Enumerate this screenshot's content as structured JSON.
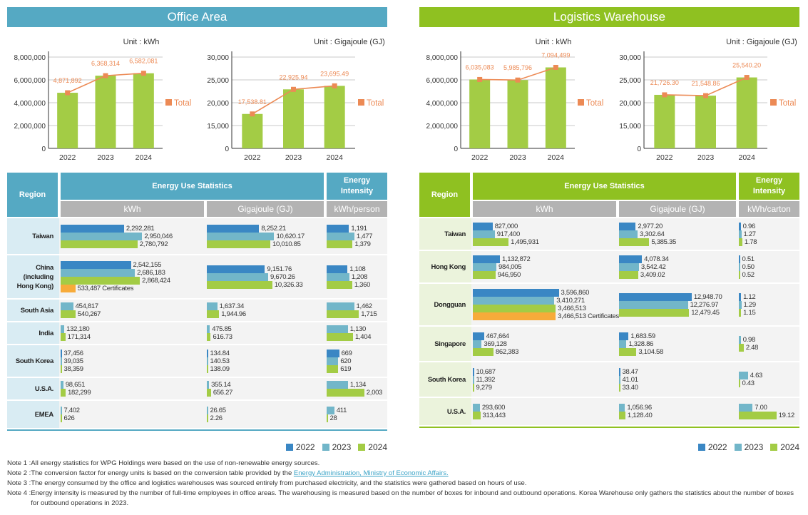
{
  "colors": {
    "office": "#55a9c3",
    "office_light": "#d9ecf3",
    "logistics": "#8fc121",
    "logistics_light": "#ebf3dc",
    "y2022": "#3a87c4",
    "y2023": "#72b6c9",
    "y2024": "#a3cc45",
    "certificates": "#f7ab3a",
    "total_line": "#ec8a55",
    "bar_green": "#a3cc45",
    "subheader_gray": "#b3b3b3"
  },
  "office": {
    "title": "Office Area",
    "table": {
      "region_header": "Region",
      "stats_header": "Energy Use Statistics",
      "intensity_header": "Energy Intensity",
      "kwh_header": "kWh",
      "gj_header": "Gigajoule (GJ)",
      "intensity_unit": "kWh/person",
      "rows": [
        {
          "region": "Taiwan",
          "kwh": [
            {
              "year": "2022",
              "value": 2292281,
              "label": "2,292,281"
            },
            {
              "year": "2023",
              "value": 2950046,
              "label": "2,950,046"
            },
            {
              "year": "2024",
              "value": 2780792,
              "label": "2,780,792"
            }
          ],
          "gj": [
            {
              "year": "2022",
              "value": 8252.21,
              "label": "8,252.21"
            },
            {
              "year": "2023",
              "value": 10620.17,
              "label": "10,620.17"
            },
            {
              "year": "2024",
              "value": 10010.85,
              "label": "10,010.85"
            }
          ],
          "intensity": [
            {
              "year": "2022",
              "value": 1191,
              "label": "1,191"
            },
            {
              "year": "2023",
              "value": 1477,
              "label": "1,477"
            },
            {
              "year": "2024",
              "value": 1379,
              "label": "1,379"
            }
          ]
        },
        {
          "region": "China (including Hong Kong)",
          "kwh": [
            {
              "year": "2022",
              "value": 2542155,
              "label": "2,542,155"
            },
            {
              "year": "2023",
              "value": 2686183,
              "label": "2,686,183"
            },
            {
              "year": "2024",
              "value": 2868424,
              "label": "2,868,424"
            },
            {
              "year": "cert",
              "value": 533487,
              "label": "533,487 Certificates"
            }
          ],
          "gj": [
            {
              "year": "2022",
              "value": 9151.76,
              "label": "9,151.76"
            },
            {
              "year": "2023",
              "value": 9670.26,
              "label": "9,670.26"
            },
            {
              "year": "2024",
              "value": 10326.33,
              "label": "10,326.33"
            }
          ],
          "intensity": [
            {
              "year": "2022",
              "value": 1108,
              "label": "1,108"
            },
            {
              "year": "2023",
              "value": 1208,
              "label": "1,208"
            },
            {
              "year": "2024",
              "value": 1360,
              "label": "1,360"
            }
          ]
        },
        {
          "region": "South Asia",
          "kwh": [
            {
              "year": "2023",
              "value": 454817,
              "label": "454,817"
            },
            {
              "year": "2024",
              "value": 540267,
              "label": "540,267"
            }
          ],
          "gj": [
            {
              "year": "2023",
              "value": 1637.34,
              "label": "1,637.34"
            },
            {
              "year": "2024",
              "value": 1944.96,
              "label": "1,944.96"
            }
          ],
          "intensity": [
            {
              "year": "2023",
              "value": 1462,
              "label": "1,462"
            },
            {
              "year": "2024",
              "value": 1715,
              "label": "1,715"
            }
          ]
        },
        {
          "region": "India",
          "kwh": [
            {
              "year": "2023",
              "value": 132180,
              "label": "132,180"
            },
            {
              "year": "2024",
              "value": 171314,
              "label": "171,314"
            }
          ],
          "gj": [
            {
              "year": "2023",
              "value": 475.85,
              "label": "475.85"
            },
            {
              "year": "2024",
              "value": 616.73,
              "label": "616.73"
            }
          ],
          "intensity": [
            {
              "year": "2023",
              "value": 1130,
              "label": "1,130"
            },
            {
              "year": "2024",
              "value": 1404,
              "label": "1,404"
            }
          ]
        },
        {
          "region": "South Korea",
          "kwh": [
            {
              "year": "2022",
              "value": 37456,
              "label": "37,456"
            },
            {
              "year": "2023",
              "value": 39035,
              "label": "39,035"
            },
            {
              "year": "2024",
              "value": 38359,
              "label": "38,359"
            }
          ],
          "gj": [
            {
              "year": "2022",
              "value": 134.84,
              "label": "134.84"
            },
            {
              "year": "2023",
              "value": 140.53,
              "label": "140.53"
            },
            {
              "year": "2024",
              "value": 138.09,
              "label": "138.09"
            }
          ],
          "intensity": [
            {
              "year": "2022",
              "value": 669,
              "label": "669"
            },
            {
              "year": "2023",
              "value": 620,
              "label": "620"
            },
            {
              "year": "2024",
              "value": 619,
              "label": "619"
            }
          ]
        },
        {
          "region": "U.S.A.",
          "kwh": [
            {
              "year": "2023",
              "value": 98651,
              "label": "98,651"
            },
            {
              "year": "2024",
              "value": 182299,
              "label": "182,299"
            }
          ],
          "gj": [
            {
              "year": "2023",
              "value": 355.14,
              "label": "355.14"
            },
            {
              "year": "2024",
              "value": 656.27,
              "label": "656.27"
            }
          ],
          "intensity": [
            {
              "year": "2023",
              "value": 1134,
              "label": "1,134"
            },
            {
              "year": "2024",
              "value": 2003,
              "label": "2,003"
            }
          ]
        },
        {
          "region": "EMEA",
          "kwh": [
            {
              "year": "2023",
              "value": 7402,
              "label": "7,402"
            },
            {
              "year": "2024",
              "value": 626,
              "label": "626"
            }
          ],
          "gj": [
            {
              "year": "2023",
              "value": 26.65,
              "label": "26.65"
            },
            {
              "year": "2024",
              "value": 2.26,
              "label": "2.26"
            }
          ],
          "intensity": [
            {
              "year": "2023",
              "value": 411,
              "label": "411"
            },
            {
              "year": "2024",
              "value": 28,
              "label": "28"
            }
          ]
        }
      ]
    }
  },
  "logistics": {
    "title": "Logistics Warehouse",
    "table": {
      "region_header": "Region",
      "stats_header": "Energy Use Statistics",
      "intensity_header": "Energy Intensity",
      "kwh_header": "kWh",
      "gj_header": "Gigajoule (GJ)",
      "intensity_unit": "kWh/carton",
      "rows": [
        {
          "region": "Taiwan",
          "kwh": [
            {
              "year": "2022",
              "value": 827000,
              "label": "827,000"
            },
            {
              "year": "2023",
              "value": 917400,
              "label": "917,400"
            },
            {
              "year": "2024",
              "value": 1495931,
              "label": "1,495,931"
            }
          ],
          "gj": [
            {
              "year": "2022",
              "value": 2977.2,
              "label": "2,977.20"
            },
            {
              "year": "2023",
              "value": 3302.64,
              "label": "3,302.64"
            },
            {
              "year": "2024",
              "value": 5385.35,
              "label": "5,385.35"
            }
          ],
          "intensity": [
            {
              "year": "2022",
              "value": 0.96,
              "label": "0.96"
            },
            {
              "year": "2023",
              "value": 1.27,
              "label": "1.27"
            },
            {
              "year": "2024",
              "value": 1.78,
              "label": "1.78"
            }
          ]
        },
        {
          "region": "Hong Kong",
          "kwh": [
            {
              "year": "2022",
              "value": 1132872,
              "label": "1,132,872"
            },
            {
              "year": "2023",
              "value": 984005,
              "label": "984,005"
            },
            {
              "year": "2024",
              "value": 946950,
              "label": "946,950"
            }
          ],
          "gj": [
            {
              "year": "2022",
              "value": 4078.34,
              "label": "4,078.34"
            },
            {
              "year": "2023",
              "value": 3542.42,
              "label": "3,542.42"
            },
            {
              "year": "2024",
              "value": 3409.02,
              "label": "3,409.02"
            }
          ],
          "intensity": [
            {
              "year": "2022",
              "value": 0.51,
              "label": "0.51"
            },
            {
              "year": "2023",
              "value": 0.5,
              "label": "0.50"
            },
            {
              "year": "2024",
              "value": 0.52,
              "label": "0.52"
            }
          ]
        },
        {
          "region": "Dongguan",
          "kwh": [
            {
              "year": "2022",
              "value": 3596860,
              "label": "3,596,860"
            },
            {
              "year": "2023",
              "value": 3410271,
              "label": "3,410,271"
            },
            {
              "year": "2024",
              "value": 3466513,
              "label": "3,466,513"
            },
            {
              "year": "cert",
              "value": 3466513,
              "label": "3,466,513 Certificates"
            }
          ],
          "gj": [
            {
              "year": "2022",
              "value": 12948.7,
              "label": "12,948.70"
            },
            {
              "year": "2023",
              "value": 12276.97,
              "label": "12,276.97"
            },
            {
              "year": "2024",
              "value": 12479.45,
              "label": "12,479.45"
            }
          ],
          "intensity": [
            {
              "year": "2022",
              "value": 1.12,
              "label": "1.12"
            },
            {
              "year": "2023",
              "value": 1.29,
              "label": "1.29"
            },
            {
              "year": "2024",
              "value": 1.15,
              "label": "1.15"
            }
          ]
        },
        {
          "region": "Singapore",
          "kwh": [
            {
              "year": "2022",
              "value": 467664,
              "label": "467,664"
            },
            {
              "year": "2023",
              "value": 369128,
              "label": "369,128"
            },
            {
              "year": "2024",
              "value": 862383,
              "label": "862,383"
            }
          ],
          "gj": [
            {
              "year": "2022",
              "value": 1683.59,
              "label": "1,683.59"
            },
            {
              "year": "2023",
              "value": 1328.86,
              "label": "1,328.86"
            },
            {
              "year": "2024",
              "value": 3104.58,
              "label": "3,104.58"
            }
          ],
          "intensity": [
            {
              "year": "2023",
              "value": 0.98,
              "label": "0.98"
            },
            {
              "year": "2024",
              "value": 2.48,
              "label": "2.48"
            }
          ]
        },
        {
          "region": "South Korea",
          "kwh": [
            {
              "year": "2022",
              "value": 10687,
              "label": "10,687"
            },
            {
              "year": "2023",
              "value": 11392,
              "label": "11,392"
            },
            {
              "year": "2024",
              "value": 9279,
              "label": "9,279"
            }
          ],
          "gj": [
            {
              "year": "2022",
              "value": 38.47,
              "label": "38.47"
            },
            {
              "year": "2023",
              "value": 41.01,
              "label": "41.01"
            },
            {
              "year": "2024",
              "value": 33.4,
              "label": "33.40"
            }
          ],
          "intensity": [
            {
              "year": "2023",
              "value": 4.63,
              "label": "4.63"
            },
            {
              "year": "2024",
              "value": 0.43,
              "label": "0.43"
            }
          ]
        },
        {
          "region": "U.S.A.",
          "kwh": [
            {
              "year": "2023",
              "value": 293600,
              "label": "293,600"
            },
            {
              "year": "2024",
              "value": 313443,
              "label": "313,443"
            }
          ],
          "gj": [
            {
              "year": "2023",
              "value": 1056.96,
              "label": "1,056.96"
            },
            {
              "year": "2024",
              "value": 1128.4,
              "label": "1,128.40"
            }
          ],
          "intensity": [
            {
              "year": "2023",
              "value": 7.0,
              "label": "7.00"
            },
            {
              "year": "2024",
              "value": 19.12,
              "label": "19.12"
            }
          ]
        }
      ]
    }
  },
  "legend": [
    "2022",
    "2023",
    "2024"
  ],
  "notes": [
    {
      "label": "Note 1 : ",
      "text": "All energy statistics for WPG Holdings were based on the use of non-renewable energy sources."
    },
    {
      "label": "Note 2 : ",
      "text": "The conversion factor for energy units is based on the conversion table provided by the ",
      "link": "Energy Administration, Ministry of Economic Affairs."
    },
    {
      "label": "Note 3 : ",
      "text": "The energy consumed by the office and logistics warehouses was sourced entirely from purchased electricity, and the statistics were gathered based on hours of use."
    },
    {
      "label": "Note 4 : ",
      "text": "Energy intensity is measured by the number of full-time employees in office areas. The warehousing is measured based on the number of boxes for inbound and outbound operations. Korea Warehouse only gathers the statistics about the number of boxes for outbound operations in 2023."
    }
  ],
  "chart_data": [
    {
      "type": "bar",
      "panel": "office",
      "title": "",
      "unit_label": "Unit : kWh",
      "categories": [
        "2022",
        "2023",
        "2024"
      ],
      "values": [
        4871892,
        6368314,
        6582081
      ],
      "value_labels": [
        "4,871,892",
        "6,368,314",
        "6,582,081"
      ],
      "line_series": {
        "name": "Total",
        "values": [
          4871892,
          6368314,
          6582081
        ]
      },
      "yticks": [
        0,
        2000000,
        4000000,
        6000000,
        8000000
      ],
      "ytick_labels": [
        "0",
        "2,000,000",
        "4,000,000",
        "6,000,000",
        "8,000,000"
      ],
      "ylim": [
        0,
        8000000
      ],
      "grid": true,
      "legend": "right",
      "legend_label": "Total"
    },
    {
      "type": "bar",
      "panel": "office",
      "title": "",
      "unit_label": "Unit : Gigajoule (GJ)",
      "categories": [
        "2022",
        "2023",
        "2024"
      ],
      "values": [
        17538.81,
        22925.94,
        23695.49
      ],
      "value_labels": [
        "17,538.81",
        "22,925.94",
        "23,695.49"
      ],
      "line_series": {
        "name": "Total",
        "values": [
          17538.81,
          22925.94,
          23695.49
        ]
      },
      "yticks": [
        0,
        15000,
        20000,
        25000,
        30000
      ],
      "ytick_labels": [
        "0",
        "15,000",
        "20,000",
        "25,000",
        "30,000"
      ],
      "ylim": [
        10000,
        30000
      ],
      "broken_axis": true,
      "grid": true,
      "legend": "right",
      "legend_label": "Total"
    },
    {
      "type": "bar",
      "panel": "logistics",
      "title": "",
      "unit_label": "Unit : kWh",
      "categories": [
        "2022",
        "2023",
        "2024"
      ],
      "values": [
        6035083,
        5985796,
        7094499
      ],
      "value_labels": [
        "6,035,083",
        "5,985,796",
        "7,094,499"
      ],
      "line_series": {
        "name": "Total",
        "values": [
          6035083,
          5985796,
          7094499
        ]
      },
      "yticks": [
        0,
        2000000,
        4000000,
        6000000,
        8000000
      ],
      "ytick_labels": [
        "0",
        "2,000,000",
        "4,000,000",
        "6,000,000",
        "8,000,000"
      ],
      "ylim": [
        0,
        8000000
      ],
      "grid": true,
      "legend": "right",
      "legend_label": "Total"
    },
    {
      "type": "bar",
      "panel": "logistics",
      "title": "",
      "unit_label": "Unit : Gigajoule (GJ)",
      "categories": [
        "2022",
        "2023",
        "2024"
      ],
      "values": [
        21726.3,
        21548.86,
        25540.2
      ],
      "value_labels": [
        "21,726.30",
        "21,548.86",
        "25,540.20"
      ],
      "line_series": {
        "name": "Total",
        "values": [
          21726.3,
          21548.86,
          25540.2
        ]
      },
      "yticks": [
        0,
        15000,
        20000,
        25000,
        30000
      ],
      "ytick_labels": [
        "0",
        "15,000",
        "20,000",
        "25,000",
        "30,000"
      ],
      "ylim": [
        10000,
        30000
      ],
      "broken_axis": true,
      "grid": true,
      "legend": "right",
      "legend_label": "Total"
    }
  ]
}
